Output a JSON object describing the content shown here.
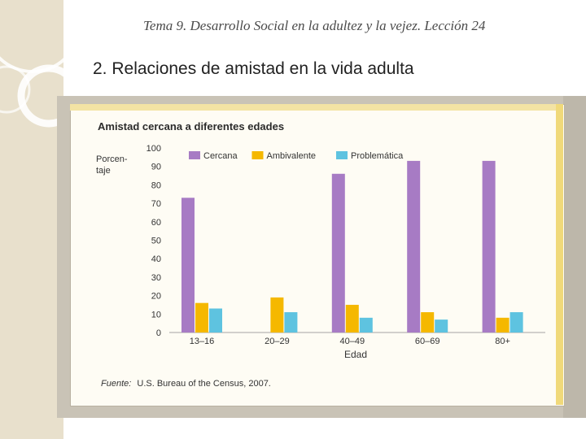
{
  "slide": {
    "header": "Tema 9. Desarrollo Social en la adultez y la vejez.  Lección 24",
    "heading": "2. Relaciones de amistad en la vida adulta"
  },
  "colors": {
    "cercana": "#a77bc4",
    "ambivalente": "#f5b800",
    "problematica": "#5ec3e0"
  },
  "chart_data": {
    "type": "bar",
    "title": "Amistad cercana a diferentes edades",
    "ylabel": "Porcen-\ntaje",
    "xlabel": "Edad",
    "ylim": [
      0,
      100
    ],
    "yticks": [
      0,
      10,
      20,
      30,
      40,
      50,
      60,
      70,
      80,
      90,
      100
    ],
    "categories": [
      "13–16",
      "20–29",
      "40–49",
      "60–69",
      "80+"
    ],
    "series": [
      {
        "name": "Cercana",
        "values": [
          73,
          0,
          86,
          93,
          93
        ]
      },
      {
        "name": "Ambivalente",
        "values": [
          16,
          19,
          15,
          11,
          8
        ]
      },
      {
        "name": "Problemática",
        "values": [
          13,
          11,
          8,
          7,
          11
        ]
      }
    ],
    "source_label": "Fuente:",
    "source_text": "U.S. Bureau of the Census, 2007."
  }
}
